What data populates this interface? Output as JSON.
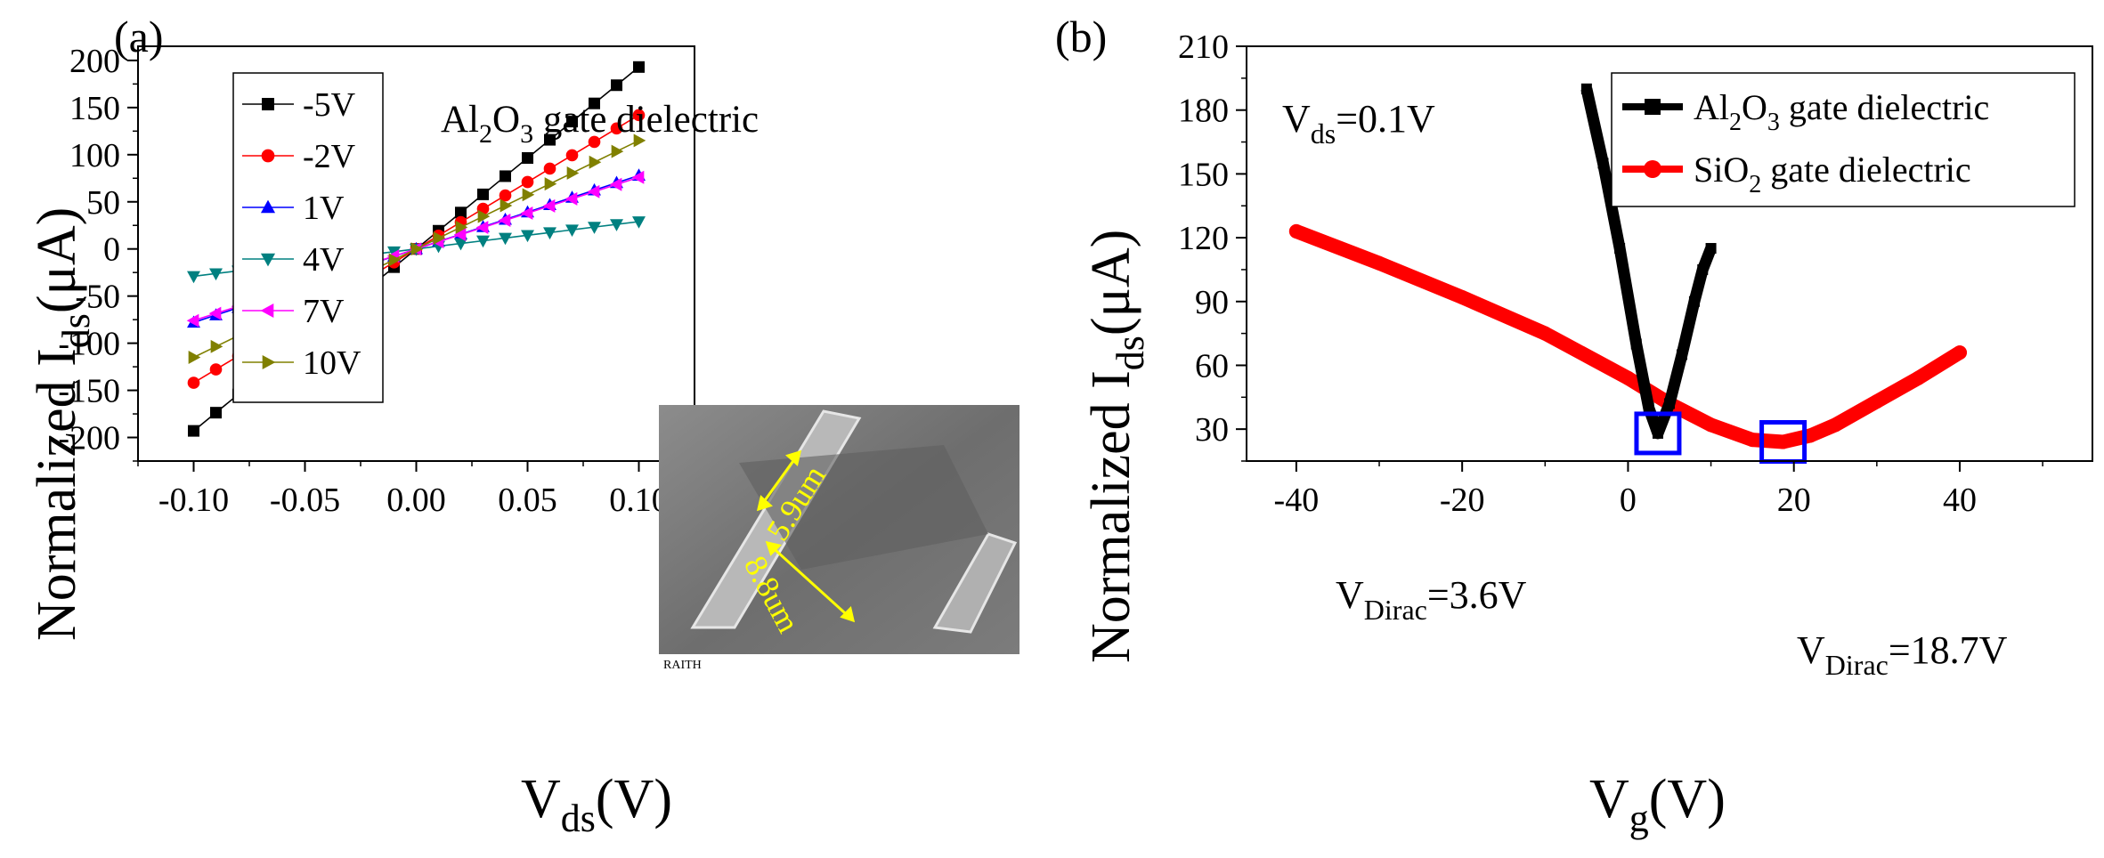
{
  "chart_data": [
    {
      "panel": "(a)",
      "type": "line",
      "title": "",
      "annotation": {
        "prefix": "Al",
        "sub1": "2",
        "mid": "O",
        "sub2": "3",
        "suffix": " gate dielectric"
      },
      "xlabel": {
        "main": "V",
        "sub": "ds",
        "rest": "(V)"
      },
      "ylabel": {
        "main": "Normalized I",
        "sub": "ds",
        "rest": "(μA)"
      },
      "xlim": [
        -0.125,
        0.125
      ],
      "ylim": [
        -225,
        215
      ],
      "xticks": [
        -0.1,
        -0.05,
        0.0,
        0.05,
        0.1
      ],
      "xticklabels": [
        "-0.10",
        "-0.05",
        "0.00",
        "0.05",
        "0.10"
      ],
      "yticks": [
        -200,
        -150,
        -100,
        -50,
        0,
        50,
        100,
        150,
        200
      ],
      "yticklabels": [
        "-200",
        "-150",
        "-100",
        "-50",
        "0",
        "50",
        "100",
        "150",
        "200"
      ],
      "legend_position": "top-left",
      "x": [
        -0.1,
        -0.09,
        -0.08,
        -0.07,
        -0.06,
        -0.05,
        -0.04,
        -0.03,
        -0.02,
        -0.01,
        0.0,
        0.01,
        0.02,
        0.03,
        0.04,
        0.05,
        0.06,
        0.07,
        0.08,
        0.09,
        0.1
      ],
      "series": [
        {
          "name": "-5V",
          "color": "#000000",
          "marker": "square",
          "slope": 1930
        },
        {
          "name": "-2V",
          "color": "#ff0000",
          "marker": "circle",
          "slope": 1420
        },
        {
          "name": "1V",
          "color": "#0000ff",
          "marker": "triangle-up",
          "slope": 780
        },
        {
          "name": "4V",
          "color": "#008080",
          "marker": "triangle-down",
          "slope": 290
        },
        {
          "name": "7V",
          "color": "#ff00ff",
          "marker": "triangle-left",
          "slope": 760
        },
        {
          "name": "10V",
          "color": "#808000",
          "marker": "triangle-right",
          "slope": 1150
        }
      ],
      "inset": {
        "type": "SEM image",
        "labels": [
          "5.9um",
          "8.8um"
        ],
        "footer_brand": "RAITH",
        "label_color": "#ffff00"
      }
    },
    {
      "panel": "(b)",
      "type": "line",
      "title": "",
      "annotation_vds": {
        "main": "V",
        "sub": "ds",
        "rest": "=0.1V"
      },
      "xlabel": {
        "main": "V",
        "sub": "g",
        "rest": "(V)"
      },
      "ylabel": {
        "main": "Normalized I",
        "sub": "ds",
        "rest": "(μA)"
      },
      "xlim": [
        -46,
        56
      ],
      "ylim": [
        15,
        210
      ],
      "xticks": [
        -40,
        -20,
        0,
        20,
        40
      ],
      "xticklabels": [
        "-40",
        "-20",
        "0",
        "20",
        "40"
      ],
      "yticks": [
        30,
        60,
        90,
        120,
        150,
        180,
        210
      ],
      "yticklabels": [
        "30",
        "60",
        "90",
        "120",
        "150",
        "180",
        "210"
      ],
      "legend_position": "top-right",
      "series": [
        {
          "name": "Al2O3 gate dielectric",
          "legend": {
            "prefix": "Al",
            "sub1": "2",
            "mid": "O",
            "sub2": "3",
            "suffix": " gate dielectric"
          },
          "color": "#000000",
          "x": [
            -5.0,
            -3.0,
            -1.0,
            1.0,
            2.5,
            3.6,
            5.0,
            6.5,
            8.0,
            9.0,
            10.0
          ],
          "y": [
            190,
            155,
            115,
            70,
            40,
            28,
            42,
            65,
            90,
            105,
            115
          ]
        },
        {
          "name": "SiO2 gate dielectric",
          "legend": {
            "prefix": "SiO",
            "sub1": "2",
            "mid": "",
            "sub2": "",
            "suffix": " gate dielectric"
          },
          "color": "#ff0000",
          "x": [
            -40,
            -30,
            -20,
            -10,
            0,
            5,
            10,
            15,
            18.7,
            22,
            25,
            30,
            35,
            40
          ],
          "y": [
            123,
            108,
            92,
            75,
            54,
            42,
            32,
            25,
            24,
            27,
            32,
            43,
            54,
            66
          ]
        }
      ],
      "dirac_labels": [
        {
          "main": "V",
          "sub": "Dirac",
          "rest": "=3.6V",
          "x": 3.6,
          "y": 28
        },
        {
          "main": "V",
          "sub": "Dirac",
          "rest": "=18.7V",
          "x": 18.7,
          "y": 24
        }
      ],
      "marker_box_color": "#0000ff"
    }
  ]
}
